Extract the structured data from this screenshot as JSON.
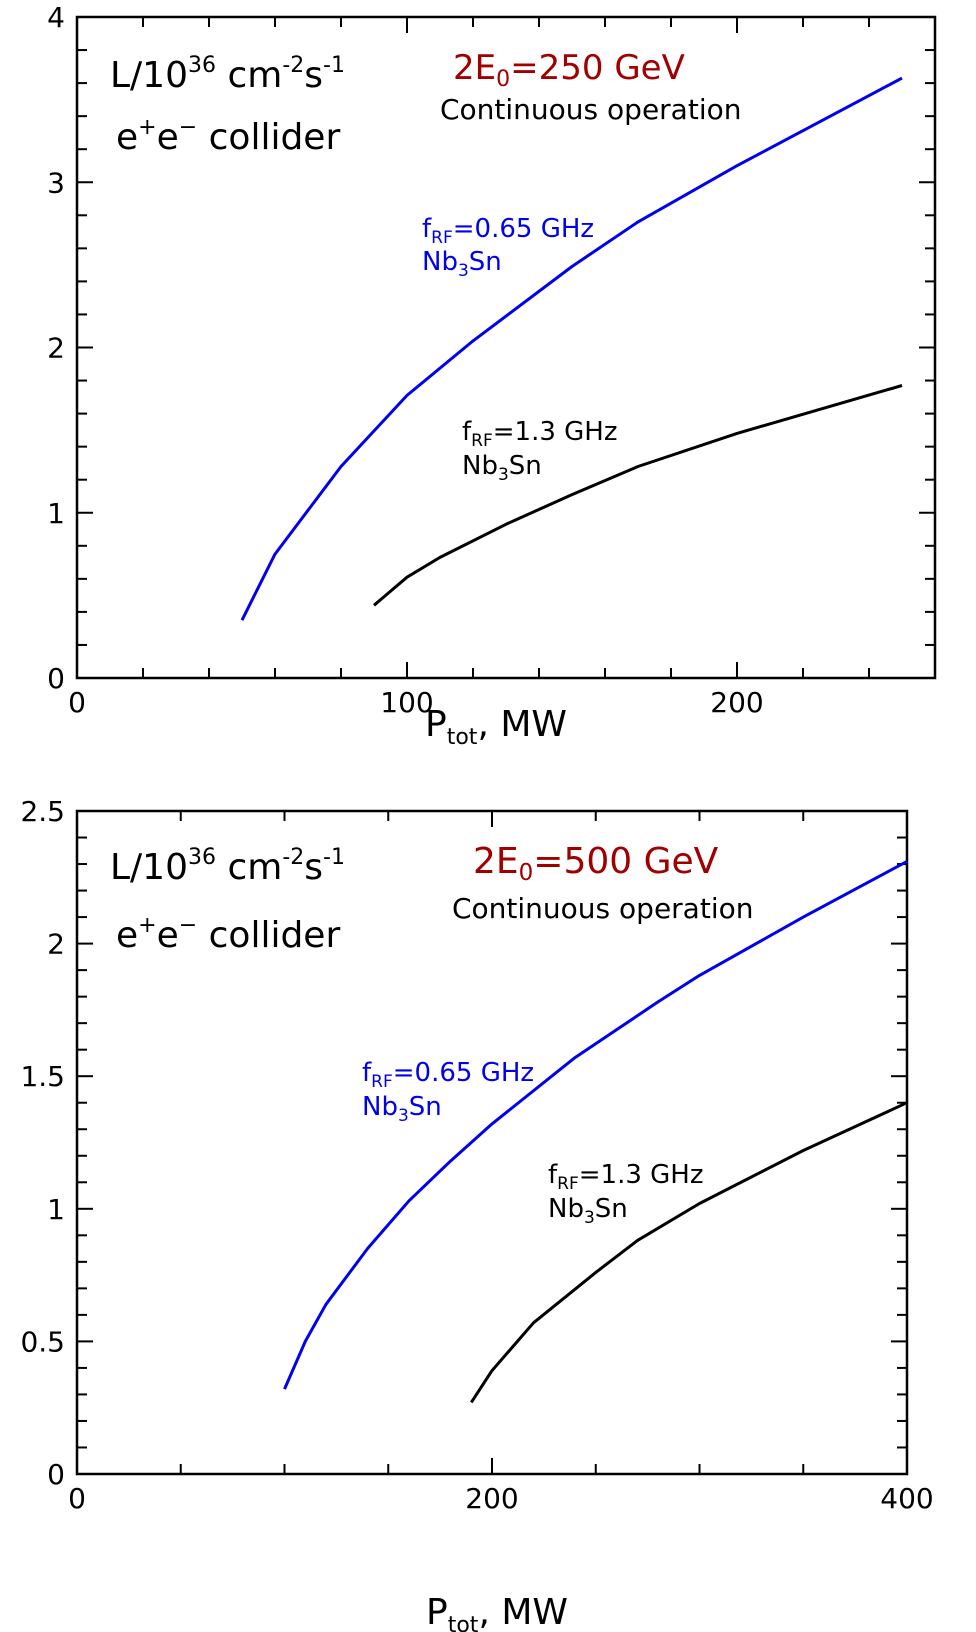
{
  "chart_data": [
    {
      "type": "line",
      "title": "2E₀=250 GeV",
      "title_parts": {
        "main": "2E",
        "sub": "0",
        "rest": "=250 GeV"
      },
      "subtitle": "Continuous operation",
      "ylabel_parts": {
        "a": "L/10",
        "sup1": "36",
        "b": " cm",
        "sup2": "-2",
        "c": "s",
        "sup3": "-1"
      },
      "collider_parts": {
        "a": "e",
        "sup1": "+",
        "b": "e",
        "sup2": "−",
        "c": " collider"
      },
      "xlabel_parts": {
        "a": "P",
        "sub": "tot",
        "b": ", MW"
      },
      "xlim": [
        0,
        260
      ],
      "ylim": [
        0,
        4
      ],
      "xticks": [
        0,
        100,
        200
      ],
      "xtick_labels": [
        "0",
        "100",
        "200"
      ],
      "yticks": [
        0,
        1,
        2,
        3,
        4
      ],
      "ytick_labels": [
        "0",
        "1",
        "2",
        "3",
        "4"
      ],
      "colors": {
        "title": "#a00000",
        "blue": "#0000ee",
        "black": "#000000"
      },
      "series": [
        {
          "label_parts": {
            "a": "f",
            "sub": "RF",
            "b": "=0.65 GHz",
            "line2a": "Nb",
            "line2sub": "3",
            "line2b": "Sn"
          },
          "color": "#0000ee",
          "x": [
            50,
            60,
            80,
            100,
            120,
            150,
            170,
            200,
            250
          ],
          "y": [
            0.35,
            0.75,
            1.28,
            1.71,
            2.04,
            2.49,
            2.76,
            3.1,
            3.63
          ]
        },
        {
          "label_parts": {
            "a": "f",
            "sub": "RF",
            "b": "=1.3 GHz",
            "line2a": "Nb",
            "line2sub": "3",
            "line2b": "Sn"
          },
          "color": "#000000",
          "x": [
            90,
            100,
            110,
            130,
            150,
            170,
            200,
            250
          ],
          "y": [
            0.44,
            0.61,
            0.73,
            0.93,
            1.11,
            1.28,
            1.48,
            1.77
          ]
        }
      ]
    },
    {
      "type": "line",
      "title": "2E₀=500 GeV",
      "title_parts": {
        "main": "2E",
        "sub": "0",
        "rest": "=500 GeV"
      },
      "subtitle": "Continuous operation",
      "ylabel_parts": {
        "a": "L/10",
        "sup1": "36",
        "b": " cm",
        "sup2": "-2",
        "c": "s",
        "sup3": "-1"
      },
      "collider_parts": {
        "a": "e",
        "sup1": "+",
        "b": "e",
        "sup2": "−",
        "c": " collider"
      },
      "xlabel_parts": {
        "a": "P",
        "sub": "tot",
        "b": ", MW"
      },
      "xlim": [
        0,
        400
      ],
      "ylim": [
        0,
        2.5
      ],
      "xticks": [
        0,
        200,
        400
      ],
      "xtick_labels": [
        "0",
        "200",
        "400"
      ],
      "yticks": [
        0,
        0.5,
        1,
        1.5,
        2,
        2.5
      ],
      "ytick_labels": [
        "0",
        "0.5",
        "1",
        "1.5",
        "2",
        "2.5"
      ],
      "colors": {
        "title": "#a00000",
        "blue": "#0000ee",
        "black": "#000000"
      },
      "series": [
        {
          "label_parts": {
            "a": "f",
            "sub": "RF",
            "b": "=0.65 GHz",
            "line2a": "Nb",
            "line2sub": "3",
            "line2b": "Sn"
          },
          "color": "#0000ee",
          "x": [
            100,
            110,
            120,
            140,
            160,
            180,
            200,
            240,
            280,
            300,
            350,
            400
          ],
          "y": [
            0.32,
            0.5,
            0.64,
            0.85,
            1.03,
            1.18,
            1.32,
            1.57,
            1.78,
            1.88,
            2.1,
            2.31
          ]
        },
        {
          "label_parts": {
            "a": "f",
            "sub": "RF",
            "b": "=1.3 GHz",
            "line2a": "Nb",
            "line2sub": "3",
            "line2b": "Sn"
          },
          "color": "#000000",
          "x": [
            190,
            200,
            220,
            250,
            270,
            300,
            350,
            400
          ],
          "y": [
            0.27,
            0.39,
            0.57,
            0.76,
            0.88,
            1.02,
            1.22,
            1.4
          ]
        }
      ]
    }
  ]
}
